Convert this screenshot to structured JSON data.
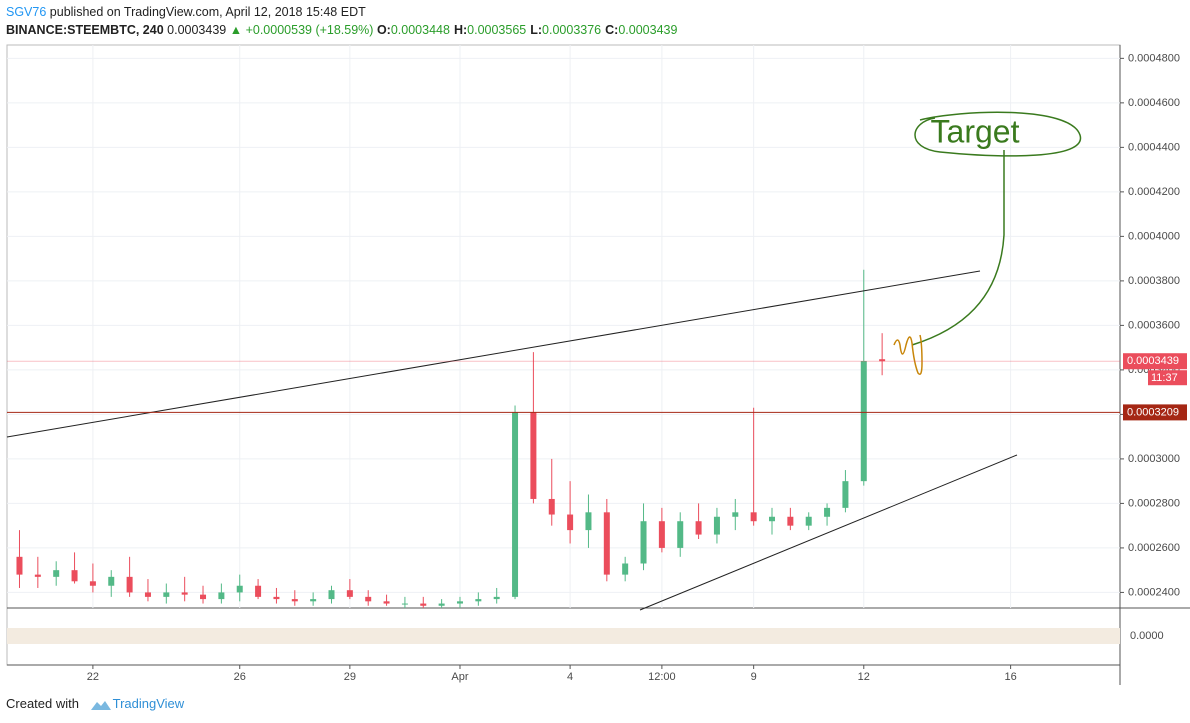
{
  "header": {
    "publisher": "SGV76",
    "published": " published on TradingView.com, April 12, 2018 15:48 EDT",
    "symbol": "BINANCE:STEEMBTC, 240",
    "price": "0.0003439",
    "change": "▲ +0.0000539 (+18.59%)",
    "ohlc": [
      {
        "label": "O:",
        "value": "0.0003448"
      },
      {
        "label": "H:",
        "value": "0.0003565"
      },
      {
        "label": "L:",
        "value": "0.0003376"
      },
      {
        "label": "C:",
        "value": "0.0003439"
      }
    ]
  },
  "chart_data": {
    "type": "candlestick",
    "x": [
      -2,
      -1.5,
      -1,
      -0.5,
      0,
      0.5,
      1,
      1.5,
      2,
      2.5,
      3,
      3.5,
      4,
      4.5,
      5,
      5.5,
      6,
      6.5,
      7,
      7.5,
      8,
      8.5,
      9,
      9.5,
      10,
      10.5,
      11,
      11.5,
      12,
      12.5,
      13,
      13.5,
      14,
      14.5,
      15,
      15.5,
      16,
      16.5,
      17,
      17.5,
      18,
      18.5,
      19,
      19.5,
      20,
      20.5,
      21,
      21.5
    ],
    "open": [
      0.000256,
      0.000248,
      0.000247,
      0.00025,
      0.000245,
      0.000243,
      0.000247,
      0.00024,
      0.000238,
      0.00024,
      0.000239,
      0.000237,
      0.00024,
      0.000243,
      0.000238,
      0.000237,
      0.000236,
      0.000237,
      0.000241,
      0.000238,
      0.000236,
      0.000235,
      0.000235,
      0.000234,
      0.000235,
      0.000236,
      0.000237,
      0.000238,
      0.000321,
      0.000282,
      0.000275,
      0.000268,
      0.000276,
      0.000248,
      0.000253,
      0.000272,
      0.00026,
      0.000272,
      0.000266,
      0.000274,
      0.000276,
      0.000272,
      0.000274,
      0.00027,
      0.000274,
      0.000278,
      0.00029,
      0.0003448
    ],
    "high": [
      0.000268,
      0.000256,
      0.000254,
      0.000258,
      0.000253,
      0.00025,
      0.000256,
      0.000246,
      0.000244,
      0.000247,
      0.000243,
      0.000244,
      0.000248,
      0.000246,
      0.000242,
      0.000241,
      0.00024,
      0.000243,
      0.000246,
      0.000241,
      0.000239,
      0.000238,
      0.000238,
      0.000237,
      0.000238,
      0.00024,
      0.000242,
      0.000324,
      0.000348,
      0.0003,
      0.00029,
      0.000284,
      0.000282,
      0.000256,
      0.00028,
      0.000278,
      0.000276,
      0.00028,
      0.000278,
      0.000282,
      0.000323,
      0.000278,
      0.000278,
      0.000276,
      0.00028,
      0.000295,
      0.000385,
      0.0003565
    ],
    "low": [
      0.000242,
      0.000242,
      0.000243,
      0.000244,
      0.00024,
      0.000238,
      0.000238,
      0.000236,
      0.000235,
      0.000236,
      0.000235,
      0.000235,
      0.000236,
      0.000237,
      0.000235,
      0.000234,
      0.000234,
      0.000235,
      0.000237,
      0.000234,
      0.000234,
      0.000233,
      0.000233,
      0.000233,
      0.000233,
      0.000234,
      0.000235,
      0.000237,
      0.00028,
      0.00027,
      0.000262,
      0.00026,
      0.000245,
      0.000245,
      0.00025,
      0.000258,
      0.000256,
      0.000264,
      0.000262,
      0.000268,
      0.00027,
      0.000266,
      0.000268,
      0.000268,
      0.00027,
      0.000276,
      0.000288,
      0.0003376
    ],
    "close": [
      0.000248,
      0.000247,
      0.00025,
      0.000245,
      0.000243,
      0.000247,
      0.00024,
      0.000238,
      0.00024,
      0.000239,
      0.000237,
      0.00024,
      0.000243,
      0.000238,
      0.000237,
      0.000236,
      0.000237,
      0.000241,
      0.000238,
      0.000236,
      0.000235,
      0.000235,
      0.000234,
      0.000235,
      0.000236,
      0.000237,
      0.000238,
      0.000321,
      0.000282,
      0.000275,
      0.000268,
      0.000276,
      0.000248,
      0.000253,
      0.000272,
      0.00026,
      0.000272,
      0.000266,
      0.000274,
      0.000276,
      0.000272,
      0.000274,
      0.00027,
      0.000274,
      0.000278,
      0.00029,
      0.000344,
      0.0003439
    ],
    "up_color": "#53b987",
    "down_color": "#eb4d5c",
    "xlim": [
      -2.34,
      27.98
    ],
    "xticks": [
      {
        "value": 0,
        "label": "22"
      },
      {
        "value": 4,
        "label": "26"
      },
      {
        "value": 7,
        "label": "29"
      },
      {
        "value": 10,
        "label": "Apr"
      },
      {
        "value": 13,
        "label": "4"
      },
      {
        "value": 15.5,
        "label": "12:00"
      },
      {
        "value": 18,
        "label": "9"
      },
      {
        "value": 21,
        "label": "12"
      },
      {
        "value": 25,
        "label": "16"
      }
    ],
    "ylim": [
      0.000233,
      0.000486
    ],
    "yticks": [
      {
        "value": 0.00024,
        "label": "0.0002400"
      },
      {
        "value": 0.00026,
        "label": "0.0002600"
      },
      {
        "value": 0.00028,
        "label": "0.0002800"
      },
      {
        "value": 0.0003,
        "label": "0.0003000"
      },
      {
        "value": 0.00032,
        "label": "0.0003200"
      },
      {
        "value": 0.00034,
        "label": "0.0003400"
      },
      {
        "value": 0.00036,
        "label": "0.0003600"
      },
      {
        "value": 0.00038,
        "label": "0.0003800"
      },
      {
        "value": 0.0004,
        "label": "0.0004000"
      },
      {
        "value": 0.00042,
        "label": "0.0004200"
      },
      {
        "value": 0.00044,
        "label": "0.0004400"
      },
      {
        "value": 0.00046,
        "label": "0.0004600"
      },
      {
        "value": 0.00048,
        "label": "0.0004800"
      }
    ],
    "grid": true,
    "price_lines": [
      {
        "value": 0.0003439,
        "color": "#eb4d5c"
      },
      {
        "value": 0.0003209,
        "color": "#a52714"
      }
    ],
    "countdown": "11:37",
    "oscillator_label": "0.0000",
    "annotation": "Target"
  },
  "footer": {
    "created": "Created with",
    "brand": "TradingView"
  }
}
